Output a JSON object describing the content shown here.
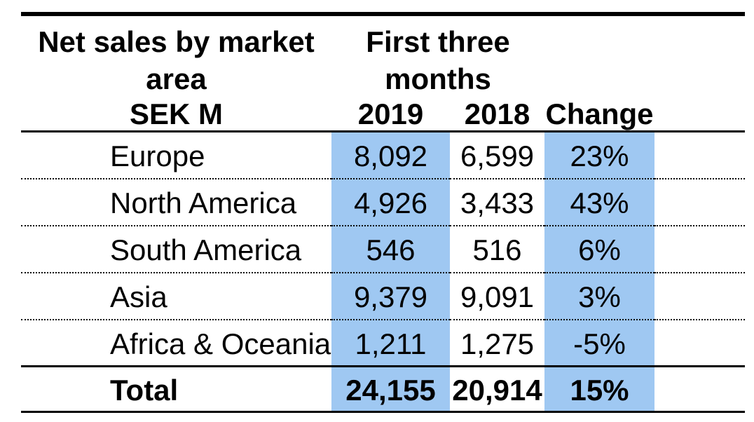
{
  "table": {
    "header": {
      "col1_title": "Net sales by market\narea",
      "period_title": "First three\nmonths",
      "unit_label": "SEK M",
      "col_2019": "2019",
      "col_2018": "2018",
      "col_change": "Change"
    },
    "rows": [
      {
        "label": "Europe",
        "y2019": "8,092",
        "y2018": "6,599",
        "change": "23%"
      },
      {
        "label": "North America",
        "y2019": "4,926",
        "y2018": "3,433",
        "change": "43%"
      },
      {
        "label": "South America",
        "y2019": "546",
        "y2018": "516",
        "change": "6%"
      },
      {
        "label": "Asia",
        "y2019": "9,379",
        "y2018": "9,091",
        "change": "3%"
      },
      {
        "label": "Africa & Oceania",
        "y2019": "1,211",
        "y2018": "1,275",
        "change": "-5%"
      }
    ],
    "total": {
      "label": "Total",
      "y2019": "24,155",
      "y2018": "20,914",
      "change": "15%"
    }
  },
  "colors": {
    "highlight": "#9FC8F2",
    "line": "#000000",
    "background": "#FFFFFF"
  }
}
